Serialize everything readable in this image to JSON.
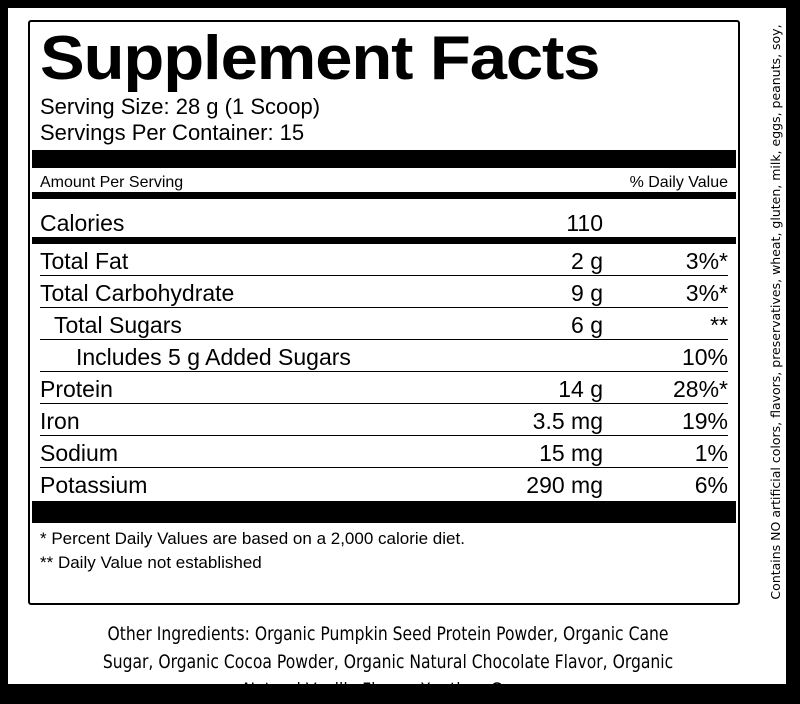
{
  "title": "Supplement Facts",
  "serving_size": "Serving Size: 28 g (1 Scoop)",
  "servings_per_container": "Servings Per Container: 15",
  "header": {
    "amount": "Amount Per Serving",
    "daily_value": "% Daily Value"
  },
  "calories": {
    "label": "Calories",
    "value": "110"
  },
  "nutrients": [
    {
      "name": "Total Fat",
      "amount": "2 g",
      "dv": "3%*"
    },
    {
      "name": "Total Carbohydrate",
      "amount": "9 g",
      "dv": "3%*"
    },
    {
      "name": "Total Sugars",
      "amount": "6 g",
      "dv": "**"
    },
    {
      "name": "Includes 5 g Added Sugars",
      "amount": "",
      "dv": "10%"
    },
    {
      "name": "Protein",
      "amount": "14 g",
      "dv": "28%*"
    },
    {
      "name": "Iron",
      "amount": "3.5 mg",
      "dv": "19%"
    },
    {
      "name": "Sodium",
      "amount": "15 mg",
      "dv": "1%"
    },
    {
      "name": "Potassium",
      "amount": "290 mg",
      "dv": "6%"
    }
  ],
  "footnotes": [
    "* Percent Daily Values are based on a 2,000 calorie diet.",
    "** Daily Value not established"
  ],
  "other_ingredients": "Other Ingredients: Organic Pumpkin Seed Protein Powder, Organic Cane Sugar, Organic Cocoa Powder, Organic Natural Chocolate Flavor, Organic Natural Vanilla Flavor, Xanthan Gum.",
  "side_text": "Contains NO artificial colors, flavors, preservatives, wheat, gluten, milk, eggs, peanuts, soy, tree nuts, crustacean shellfish or fish. Suitable for vegans."
}
